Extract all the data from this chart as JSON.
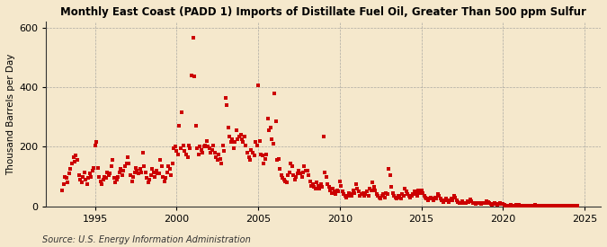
{
  "title": "Monthly East Coast (PADD 1) Imports of Distillate Fuel Oil, Greater Than 500 ppm Sulfur",
  "ylabel": "Thousand Barrels per Day",
  "source": "Source: U.S. Energy Information Administration",
  "background_color": "#f5e8cc",
  "dot_color": "#cc0000",
  "grid_color": "#aaaaaa",
  "xlim": [
    1992.0,
    2026.0
  ],
  "ylim": [
    0,
    620
  ],
  "yticks": [
    0,
    200,
    400,
    600
  ],
  "xticks": [
    1995,
    2000,
    2005,
    2010,
    2015,
    2020,
    2025
  ],
  "data": [
    [
      1993.0,
      55
    ],
    [
      1993.08,
      75
    ],
    [
      1993.17,
      100
    ],
    [
      1993.25,
      95
    ],
    [
      1993.33,
      80
    ],
    [
      1993.42,
      110
    ],
    [
      1993.5,
      125
    ],
    [
      1993.58,
      145
    ],
    [
      1993.67,
      165
    ],
    [
      1993.75,
      150
    ],
    [
      1993.83,
      170
    ],
    [
      1993.92,
      155
    ],
    [
      1994.0,
      105
    ],
    [
      1994.08,
      90
    ],
    [
      1994.17,
      80
    ],
    [
      1994.25,
      100
    ],
    [
      1994.33,
      115
    ],
    [
      1994.42,
      90
    ],
    [
      1994.5,
      75
    ],
    [
      1994.58,
      95
    ],
    [
      1994.67,
      110
    ],
    [
      1994.75,
      100
    ],
    [
      1994.83,
      120
    ],
    [
      1994.92,
      130
    ],
    [
      1995.0,
      205
    ],
    [
      1995.08,
      215
    ],
    [
      1995.17,
      130
    ],
    [
      1995.25,
      100
    ],
    [
      1995.33,
      85
    ],
    [
      1995.42,
      75
    ],
    [
      1995.5,
      90
    ],
    [
      1995.58,
      100
    ],
    [
      1995.67,
      95
    ],
    [
      1995.75,
      115
    ],
    [
      1995.83,
      105
    ],
    [
      1995.92,
      110
    ],
    [
      1996.0,
      135
    ],
    [
      1996.08,
      155
    ],
    [
      1996.17,
      95
    ],
    [
      1996.25,
      80
    ],
    [
      1996.33,
      90
    ],
    [
      1996.42,
      100
    ],
    [
      1996.5,
      115
    ],
    [
      1996.58,
      125
    ],
    [
      1996.67,
      105
    ],
    [
      1996.75,
      120
    ],
    [
      1996.83,
      135
    ],
    [
      1996.92,
      145
    ],
    [
      1997.0,
      165
    ],
    [
      1997.08,
      145
    ],
    [
      1997.17,
      105
    ],
    [
      1997.25,
      85
    ],
    [
      1997.33,
      100
    ],
    [
      1997.42,
      115
    ],
    [
      1997.5,
      130
    ],
    [
      1997.58,
      120
    ],
    [
      1997.67,
      110
    ],
    [
      1997.75,
      125
    ],
    [
      1997.83,
      115
    ],
    [
      1997.92,
      180
    ],
    [
      1998.0,
      135
    ],
    [
      1998.08,
      115
    ],
    [
      1998.17,
      95
    ],
    [
      1998.25,
      80
    ],
    [
      1998.33,
      90
    ],
    [
      1998.42,
      105
    ],
    [
      1998.5,
      125
    ],
    [
      1998.58,
      115
    ],
    [
      1998.67,
      100
    ],
    [
      1998.75,
      120
    ],
    [
      1998.83,
      110
    ],
    [
      1998.92,
      110
    ],
    [
      1999.0,
      155
    ],
    [
      1999.08,
      135
    ],
    [
      1999.17,
      100
    ],
    [
      1999.25,
      85
    ],
    [
      1999.33,
      95
    ],
    [
      1999.42,
      115
    ],
    [
      1999.5,
      135
    ],
    [
      1999.58,
      125
    ],
    [
      1999.67,
      105
    ],
    [
      1999.75,
      145
    ],
    [
      1999.83,
      195
    ],
    [
      1999.92,
      200
    ],
    [
      2000.0,
      185
    ],
    [
      2000.08,
      175
    ],
    [
      2000.17,
      270
    ],
    [
      2000.25,
      195
    ],
    [
      2000.33,
      315
    ],
    [
      2000.42,
      205
    ],
    [
      2000.5,
      185
    ],
    [
      2000.58,
      175
    ],
    [
      2000.67,
      165
    ],
    [
      2000.75,
      205
    ],
    [
      2000.83,
      195
    ],
    [
      2000.92,
      440
    ],
    [
      2001.0,
      565
    ],
    [
      2001.08,
      435
    ],
    [
      2001.17,
      270
    ],
    [
      2001.25,
      195
    ],
    [
      2001.33,
      175
    ],
    [
      2001.42,
      200
    ],
    [
      2001.5,
      190
    ],
    [
      2001.58,
      180
    ],
    [
      2001.67,
      200
    ],
    [
      2001.75,
      205
    ],
    [
      2001.83,
      220
    ],
    [
      2001.92,
      200
    ],
    [
      2002.0,
      195
    ],
    [
      2002.08,
      180
    ],
    [
      2002.17,
      190
    ],
    [
      2002.25,
      205
    ],
    [
      2002.33,
      180
    ],
    [
      2002.42,
      165
    ],
    [
      2002.5,
      155
    ],
    [
      2002.58,
      175
    ],
    [
      2002.67,
      160
    ],
    [
      2002.75,
      145
    ],
    [
      2002.83,
      205
    ],
    [
      2002.92,
      185
    ],
    [
      2003.0,
      365
    ],
    [
      2003.08,
      340
    ],
    [
      2003.17,
      265
    ],
    [
      2003.25,
      235
    ],
    [
      2003.33,
      215
    ],
    [
      2003.42,
      225
    ],
    [
      2003.5,
      195
    ],
    [
      2003.58,
      215
    ],
    [
      2003.67,
      255
    ],
    [
      2003.75,
      225
    ],
    [
      2003.83,
      235
    ],
    [
      2003.92,
      240
    ],
    [
      2004.0,
      225
    ],
    [
      2004.08,
      215
    ],
    [
      2004.17,
      235
    ],
    [
      2004.25,
      205
    ],
    [
      2004.33,
      180
    ],
    [
      2004.42,
      165
    ],
    [
      2004.5,
      155
    ],
    [
      2004.58,
      190
    ],
    [
      2004.67,
      180
    ],
    [
      2004.75,
      170
    ],
    [
      2004.83,
      215
    ],
    [
      2004.92,
      205
    ],
    [
      2005.0,
      405
    ],
    [
      2005.08,
      220
    ],
    [
      2005.17,
      175
    ],
    [
      2005.25,
      170
    ],
    [
      2005.33,
      145
    ],
    [
      2005.42,
      160
    ],
    [
      2005.5,
      175
    ],
    [
      2005.58,
      295
    ],
    [
      2005.67,
      255
    ],
    [
      2005.75,
      265
    ],
    [
      2005.83,
      225
    ],
    [
      2005.92,
      210
    ],
    [
      2006.0,
      380
    ],
    [
      2006.08,
      285
    ],
    [
      2006.17,
      155
    ],
    [
      2006.25,
      160
    ],
    [
      2006.33,
      125
    ],
    [
      2006.42,
      105
    ],
    [
      2006.5,
      95
    ],
    [
      2006.58,
      90
    ],
    [
      2006.67,
      85
    ],
    [
      2006.75,
      80
    ],
    [
      2006.83,
      105
    ],
    [
      2006.92,
      115
    ],
    [
      2007.0,
      145
    ],
    [
      2007.08,
      135
    ],
    [
      2007.17,
      105
    ],
    [
      2007.25,
      90
    ],
    [
      2007.33,
      100
    ],
    [
      2007.42,
      110
    ],
    [
      2007.5,
      120
    ],
    [
      2007.58,
      110
    ],
    [
      2007.67,
      100
    ],
    [
      2007.75,
      115
    ],
    [
      2007.83,
      135
    ],
    [
      2007.92,
      120
    ],
    [
      2008.0,
      120
    ],
    [
      2008.08,
      105
    ],
    [
      2008.17,
      85
    ],
    [
      2008.25,
      70
    ],
    [
      2008.33,
      75
    ],
    [
      2008.42,
      65
    ],
    [
      2008.5,
      60
    ],
    [
      2008.58,
      80
    ],
    [
      2008.67,
      70
    ],
    [
      2008.75,
      60
    ],
    [
      2008.83,
      75
    ],
    [
      2008.92,
      65
    ],
    [
      2009.0,
      235
    ],
    [
      2009.08,
      115
    ],
    [
      2009.17,
      100
    ],
    [
      2009.25,
      75
    ],
    [
      2009.33,
      65
    ],
    [
      2009.42,
      55
    ],
    [
      2009.5,
      45
    ],
    [
      2009.58,
      60
    ],
    [
      2009.67,
      50
    ],
    [
      2009.75,
      40
    ],
    [
      2009.83,
      55
    ],
    [
      2009.92,
      50
    ],
    [
      2010.0,
      85
    ],
    [
      2010.08,
      70
    ],
    [
      2010.17,
      50
    ],
    [
      2010.25,
      40
    ],
    [
      2010.33,
      35
    ],
    [
      2010.42,
      30
    ],
    [
      2010.5,
      35
    ],
    [
      2010.58,
      45
    ],
    [
      2010.67,
      40
    ],
    [
      2010.75,
      35
    ],
    [
      2010.83,
      55
    ],
    [
      2010.92,
      45
    ],
    [
      2011.0,
      75
    ],
    [
      2011.08,
      60
    ],
    [
      2011.17,
      50
    ],
    [
      2011.25,
      35
    ],
    [
      2011.33,
      40
    ],
    [
      2011.42,
      45
    ],
    [
      2011.5,
      35
    ],
    [
      2011.58,
      40
    ],
    [
      2011.67,
      50
    ],
    [
      2011.75,
      35
    ],
    [
      2011.83,
      60
    ],
    [
      2011.92,
      55
    ],
    [
      2012.0,
      80
    ],
    [
      2012.08,
      65
    ],
    [
      2012.17,
      55
    ],
    [
      2012.25,
      40
    ],
    [
      2012.33,
      35
    ],
    [
      2012.42,
      30
    ],
    [
      2012.5,
      25
    ],
    [
      2012.58,
      35
    ],
    [
      2012.67,
      40
    ],
    [
      2012.75,
      30
    ],
    [
      2012.83,
      45
    ],
    [
      2012.92,
      40
    ],
    [
      2013.0,
      125
    ],
    [
      2013.08,
      105
    ],
    [
      2013.17,
      65
    ],
    [
      2013.25,
      45
    ],
    [
      2013.33,
      35
    ],
    [
      2013.42,
      30
    ],
    [
      2013.5,
      25
    ],
    [
      2013.58,
      35
    ],
    [
      2013.67,
      30
    ],
    [
      2013.75,
      25
    ],
    [
      2013.83,
      40
    ],
    [
      2013.92,
      35
    ],
    [
      2014.0,
      60
    ],
    [
      2014.08,
      50
    ],
    [
      2014.17,
      40
    ],
    [
      2014.25,
      35
    ],
    [
      2014.33,
      30
    ],
    [
      2014.42,
      35
    ],
    [
      2014.5,
      40
    ],
    [
      2014.58,
      50
    ],
    [
      2014.67,
      40
    ],
    [
      2014.75,
      35
    ],
    [
      2014.83,
      55
    ],
    [
      2014.92,
      45
    ],
    [
      2015.0,
      55
    ],
    [
      2015.08,
      45
    ],
    [
      2015.17,
      35
    ],
    [
      2015.25,
      30
    ],
    [
      2015.33,
      25
    ],
    [
      2015.42,
      20
    ],
    [
      2015.5,
      25
    ],
    [
      2015.58,
      30
    ],
    [
      2015.67,
      25
    ],
    [
      2015.75,
      20
    ],
    [
      2015.83,
      30
    ],
    [
      2015.92,
      25
    ],
    [
      2016.0,
      40
    ],
    [
      2016.08,
      35
    ],
    [
      2016.17,
      25
    ],
    [
      2016.25,
      20
    ],
    [
      2016.33,
      15
    ],
    [
      2016.42,
      20
    ],
    [
      2016.5,
      25
    ],
    [
      2016.58,
      20
    ],
    [
      2016.67,
      15
    ],
    [
      2016.75,
      20
    ],
    [
      2016.83,
      25
    ],
    [
      2016.92,
      20
    ],
    [
      2017.0,
      35
    ],
    [
      2017.08,
      30
    ],
    [
      2017.17,
      20
    ],
    [
      2017.25,
      15
    ],
    [
      2017.33,
      10
    ],
    [
      2017.42,
      12
    ],
    [
      2017.5,
      18
    ],
    [
      2017.58,
      12
    ],
    [
      2017.67,
      10
    ],
    [
      2017.75,
      12
    ],
    [
      2017.83,
      18
    ],
    [
      2017.92,
      15
    ],
    [
      2018.0,
      22
    ],
    [
      2018.08,
      18
    ],
    [
      2018.17,
      12
    ],
    [
      2018.25,
      10
    ],
    [
      2018.33,
      8
    ],
    [
      2018.42,
      10
    ],
    [
      2018.5,
      12
    ],
    [
      2018.58,
      10
    ],
    [
      2018.67,
      8
    ],
    [
      2018.75,
      10
    ],
    [
      2018.83,
      12
    ],
    [
      2018.92,
      10
    ],
    [
      2019.0,
      18
    ],
    [
      2019.08,
      14
    ],
    [
      2019.17,
      10
    ],
    [
      2019.25,
      7
    ],
    [
      2019.33,
      5
    ],
    [
      2019.42,
      7
    ],
    [
      2019.5,
      10
    ],
    [
      2019.58,
      7
    ],
    [
      2019.67,
      5
    ],
    [
      2019.75,
      7
    ],
    [
      2019.83,
      10
    ],
    [
      2019.92,
      8
    ],
    [
      2020.0,
      7
    ],
    [
      2020.08,
      5
    ],
    [
      2020.17,
      3
    ],
    [
      2020.25,
      2
    ],
    [
      2020.33,
      2
    ],
    [
      2020.42,
      3
    ],
    [
      2020.5,
      4
    ],
    [
      2020.58,
      3
    ],
    [
      2020.67,
      2
    ],
    [
      2020.75,
      3
    ],
    [
      2020.83,
      4
    ],
    [
      2020.92,
      3
    ],
    [
      2021.0,
      4
    ],
    [
      2021.08,
      3
    ],
    [
      2021.17,
      2
    ],
    [
      2021.25,
      2
    ],
    [
      2021.33,
      3
    ],
    [
      2021.42,
      2
    ],
    [
      2021.5,
      3
    ],
    [
      2021.58,
      2
    ],
    [
      2021.67,
      3
    ],
    [
      2021.75,
      2
    ],
    [
      2021.83,
      3
    ],
    [
      2021.92,
      2
    ],
    [
      2022.0,
      4
    ],
    [
      2022.08,
      3
    ],
    [
      2022.17,
      2
    ],
    [
      2022.25,
      3
    ],
    [
      2022.33,
      2
    ],
    [
      2022.42,
      3
    ],
    [
      2022.5,
      2
    ],
    [
      2022.58,
      3
    ],
    [
      2022.67,
      2
    ],
    [
      2022.75,
      3
    ],
    [
      2022.83,
      2
    ],
    [
      2022.92,
      3
    ],
    [
      2023.0,
      3
    ],
    [
      2023.08,
      2
    ],
    [
      2023.17,
      3
    ],
    [
      2023.25,
      2
    ],
    [
      2023.33,
      3
    ],
    [
      2023.42,
      2
    ],
    [
      2023.5,
      3
    ],
    [
      2023.58,
      2
    ],
    [
      2023.67,
      3
    ],
    [
      2023.75,
      2
    ],
    [
      2023.83,
      3
    ],
    [
      2023.92,
      2
    ],
    [
      2024.0,
      2
    ],
    [
      2024.08,
      3
    ],
    [
      2024.17,
      2
    ],
    [
      2024.25,
      3
    ],
    [
      2024.33,
      2
    ],
    [
      2024.42,
      3
    ],
    [
      2024.5,
      2
    ],
    [
      2024.58,
      3
    ]
  ]
}
